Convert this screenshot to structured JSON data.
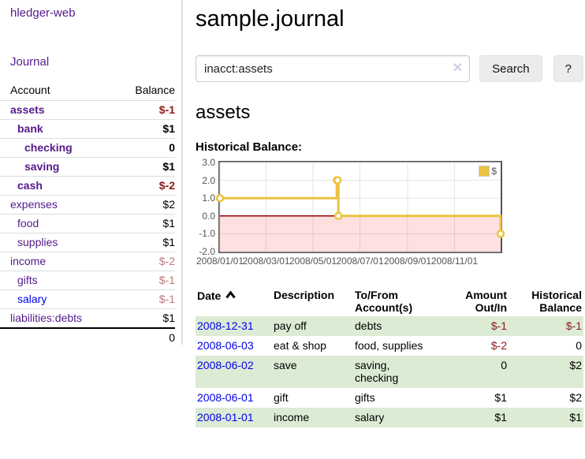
{
  "sidebar": {
    "brand": "hledger-web",
    "journal_link": "Journal",
    "table": {
      "account_header": "Account",
      "balance_header": "Balance",
      "rows": [
        {
          "account": "assets",
          "balance": "$-1",
          "indent": 1,
          "bold": true,
          "balance_class": "neg"
        },
        {
          "account": "bank",
          "balance": "$1",
          "indent": 2,
          "bold": true,
          "balance_class": ""
        },
        {
          "account": "checking",
          "balance": "0",
          "indent": 3,
          "bold": true,
          "balance_class": ""
        },
        {
          "account": "saving",
          "balance": "$1",
          "indent": 3,
          "bold": true,
          "balance_class": ""
        },
        {
          "account": "cash",
          "balance": "$-2",
          "indent": 2,
          "bold": true,
          "balance_class": "neg"
        },
        {
          "account": "expenses",
          "balance": "$2",
          "indent": 1,
          "bold": false,
          "balance_class": ""
        },
        {
          "account": "food",
          "balance": "$1",
          "indent": 2,
          "bold": false,
          "balance_class": ""
        },
        {
          "account": "supplies",
          "balance": "$1",
          "indent": 2,
          "bold": false,
          "balance_class": ""
        },
        {
          "account": "income",
          "balance": "$-2",
          "indent": 1,
          "bold": false,
          "balance_class": "muted"
        },
        {
          "account": "gifts",
          "balance": "$-1",
          "indent": 2,
          "bold": false,
          "balance_class": "muted"
        },
        {
          "account": "salary",
          "balance": "$-1",
          "indent": 2,
          "bold": false,
          "balance_class": "muted",
          "blue_link": true
        },
        {
          "account": "liabilities:debts",
          "balance": "$1",
          "indent": 1,
          "bold": false,
          "balance_class": ""
        }
      ],
      "total": "0"
    }
  },
  "main": {
    "title": "sample.journal",
    "search": {
      "value": "inacct:assets",
      "clear_label": "✕",
      "button_label": "Search",
      "help_label": "?"
    },
    "account_heading": "assets",
    "chart_label": "Historical Balance:",
    "register": {
      "headers": {
        "date": "Date",
        "description": "Description",
        "tofrom_line1": "To/From",
        "tofrom_line2": "Account(s)",
        "amount_line1": "Amount",
        "amount_line2": "Out/In",
        "balance_line1": "Historical",
        "balance_line2": "Balance"
      },
      "sort": "ascending",
      "rows": [
        {
          "date": "2008-12-31",
          "description": "pay off",
          "accounts": "debts",
          "amount": "$-1",
          "balance": "$-1"
        },
        {
          "date": "2008-06-03",
          "description": "eat & shop",
          "accounts": "food, supplies",
          "amount": "$-2",
          "balance": "0"
        },
        {
          "date": "2008-06-02",
          "description": "save",
          "accounts": "saving, checking",
          "amount": "0",
          "balance": "$2"
        },
        {
          "date": "2008-06-01",
          "description": "gift",
          "accounts": "gifts",
          "amount": "$1",
          "balance": "$2"
        },
        {
          "date": "2008-01-01",
          "description": "income",
          "accounts": "salary",
          "amount": "$1",
          "balance": "$1"
        }
      ]
    }
  },
  "chart_data": {
    "type": "line",
    "step": true,
    "title": "Historical Balance:",
    "series": [
      {
        "name": "$",
        "color": "#edc240",
        "points": [
          {
            "date": "2008-01-01",
            "value": 1
          },
          {
            "date": "2008-06-01",
            "value": 2
          },
          {
            "date": "2008-06-02",
            "value": 2
          },
          {
            "date": "2008-06-03",
            "value": 0
          },
          {
            "date": "2008-12-31",
            "value": -1
          }
        ]
      }
    ],
    "x_range": [
      "2008-01-01",
      "2008-12-31"
    ],
    "y_range": [
      -2,
      3
    ],
    "y_ticks": [
      "3.0",
      "2.0",
      "1.0",
      "0.0",
      "-1.0",
      "-2.0"
    ],
    "x_ticks": [
      {
        "label": "2008/01/01",
        "date": "2008-01-01"
      },
      {
        "label": "2008/03/01",
        "date": "2008-03-01"
      },
      {
        "label": "2008/05/01",
        "date": "2008-05-01"
      },
      {
        "label": "2008/07/01",
        "date": "2008-07-01"
      },
      {
        "label": "2008/09/01",
        "date": "2008-09-01"
      },
      {
        "label": "2008/11/01",
        "date": "2008-11-01"
      }
    ],
    "legend_position": "top-right",
    "grid": true,
    "grid_color": "#e5e5e5",
    "negative_region_color": "rgba(255,0,0,0.12)",
    "zero_line_color": "#990000",
    "axis_text_color": "#545454",
    "border_color": "#545454"
  }
}
